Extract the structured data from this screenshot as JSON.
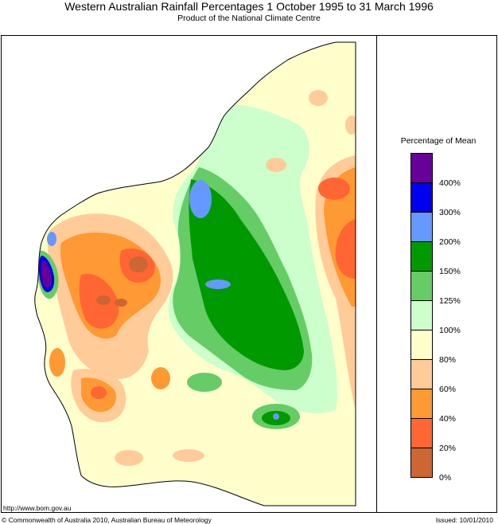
{
  "header": {
    "title": "Western Australian Rainfall Percentages 1 October 1995 to 31 March 1996",
    "subtitle": "Product of the National Climate Centre"
  },
  "legend": {
    "title": "Percentage of Mean",
    "bins": [
      {
        "color": "#660099"
      },
      {
        "color": "#0000ee"
      },
      {
        "color": "#6699ff"
      },
      {
        "color": "#009900"
      },
      {
        "color": "#66cc66"
      },
      {
        "color": "#ccffcc"
      },
      {
        "color": "#ffffcc"
      },
      {
        "color": "#ffcc99"
      },
      {
        "color": "#ff9933"
      },
      {
        "color": "#ff6633"
      },
      {
        "color": "#cc6633"
      }
    ],
    "ticks": [
      "400%",
      "300%",
      "200%",
      "150%",
      "125%",
      "100%",
      "80%",
      "60%",
      "40%",
      "20%",
      "0%"
    ]
  },
  "footer": {
    "url": "http://www.bom.gov.au",
    "copyright": "© Commonwealth of Australia 2010, Australian Bureau of Meteorology",
    "issued": "Issued: 10/01/2010"
  }
}
